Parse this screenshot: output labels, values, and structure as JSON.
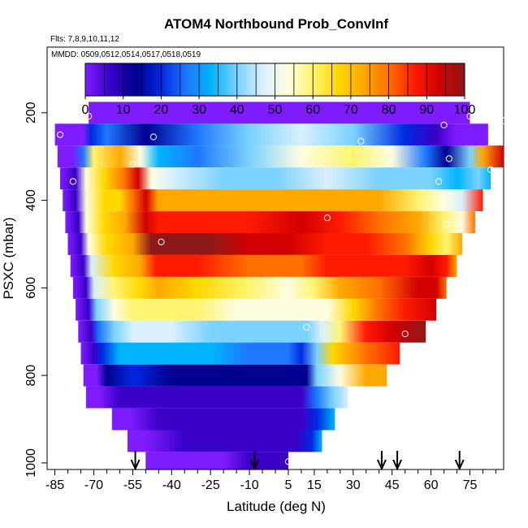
{
  "chart_data": {
    "type": "heatmap",
    "title": "ATOM4 Northbound Prob_ConvInf",
    "subtitle_flights": "Flts: 7,8,9,10,11,12",
    "subtitle_dates": "MMDD: 0509,0512,0514,0517,0518,0519",
    "xlabel": "Latitude (deg N)",
    "ylabel": "PSXC (mbar)",
    "xlim": [
      -88,
      88
    ],
    "ylim": [
      1015,
      50
    ],
    "y_reversed": true,
    "x_ticks": [
      -85,
      -70,
      -55,
      -40,
      -25,
      -10,
      5,
      15,
      30,
      45,
      60,
      75
    ],
    "x_minor_ticks": [
      -80,
      -75,
      -65,
      -60,
      -50,
      -45,
      -35,
      -30,
      -20,
      -15,
      -5,
      0,
      10,
      20,
      25,
      35,
      40,
      50,
      55,
      65,
      70,
      80,
      85
    ],
    "y_ticks": [
      200,
      400,
      600,
      800,
      1000
    ],
    "colorbar": {
      "range": [
        0,
        100
      ],
      "ticks": [
        0,
        10,
        20,
        30,
        40,
        50,
        60,
        70,
        80,
        90,
        100
      ],
      "colors": [
        "#7f1cff",
        "#3a00c8",
        "#000090",
        "#0028e0",
        "#1e78ff",
        "#00b4ff",
        "#7ad2ff",
        "#d8f0ff",
        "#fffde0",
        "#fff470",
        "#ffd800",
        "#ffa800",
        "#ff7000",
        "#ff1a00",
        "#d20000",
        "#8e1818"
      ]
    },
    "levels": [
      {
        "p": 200,
        "lat_min": -72,
        "lat_max": 75,
        "segments": [
          [
            -72,
            0
          ],
          [
            75,
            0
          ]
        ]
      },
      {
        "p": 250,
        "lat_min": -85,
        "lat_max": 82,
        "segments": [
          [
            -85,
            0
          ],
          [
            -74,
            4
          ],
          [
            -71,
            20
          ],
          [
            -65,
            28
          ],
          [
            -50,
            16
          ],
          [
            -30,
            28
          ],
          [
            -10,
            40
          ],
          [
            10,
            48
          ],
          [
            30,
            40
          ],
          [
            50,
            22
          ],
          [
            62,
            10
          ],
          [
            70,
            0
          ],
          [
            82,
            0
          ]
        ]
      },
      {
        "p": 300,
        "lat_min": -84,
        "lat_max": 88,
        "segments": [
          [
            -84,
            0
          ],
          [
            -78,
            6
          ],
          [
            -74,
            30
          ],
          [
            -70,
            60
          ],
          [
            -60,
            72
          ],
          [
            -52,
            50
          ],
          [
            -45,
            36
          ],
          [
            -30,
            28
          ],
          [
            -10,
            40
          ],
          [
            10,
            52
          ],
          [
            30,
            58
          ],
          [
            45,
            50
          ],
          [
            58,
            30
          ],
          [
            66,
            16
          ],
          [
            75,
            40
          ],
          [
            80,
            70
          ],
          [
            88,
            90
          ]
        ]
      },
      {
        "p": 350,
        "lat_min": -83,
        "lat_max": 83,
        "segments": [
          [
            -83,
            0
          ],
          [
            -77,
            8
          ],
          [
            -73,
            50
          ],
          [
            -66,
            64
          ],
          [
            -58,
            78
          ],
          [
            -53,
            88
          ],
          [
            -48,
            55
          ],
          [
            -40,
            46
          ],
          [
            -20,
            42
          ],
          [
            0,
            40
          ],
          [
            20,
            44
          ],
          [
            40,
            42
          ],
          [
            60,
            40
          ],
          [
            70,
            36
          ],
          [
            78,
            40
          ],
          [
            83,
            36
          ]
        ]
      },
      {
        "p": 400,
        "lat_min": -82,
        "lat_max": 80,
        "segments": [
          [
            -82,
            0
          ],
          [
            -77,
            8
          ],
          [
            -73,
            50
          ],
          [
            -66,
            64
          ],
          [
            -60,
            68
          ],
          [
            -55,
            78
          ],
          [
            -50,
            88
          ],
          [
            -45,
            72
          ],
          [
            -35,
            70
          ],
          [
            -15,
            74
          ],
          [
            5,
            74
          ],
          [
            20,
            72
          ],
          [
            40,
            74
          ],
          [
            55,
            62
          ],
          [
            65,
            50
          ],
          [
            72,
            44
          ],
          [
            80,
            85
          ]
        ]
      },
      {
        "p": 450,
        "lat_min": -81,
        "lat_max": 77,
        "segments": [
          [
            -81,
            0
          ],
          [
            -76,
            8
          ],
          [
            -73,
            50
          ],
          [
            -66,
            66
          ],
          [
            -58,
            72
          ],
          [
            -50,
            92
          ],
          [
            -45,
            86
          ],
          [
            -30,
            84
          ],
          [
            -10,
            84
          ],
          [
            10,
            88
          ],
          [
            25,
            86
          ],
          [
            40,
            80
          ],
          [
            55,
            72
          ],
          [
            65,
            60
          ],
          [
            72,
            50
          ],
          [
            77,
            78
          ]
        ]
      },
      {
        "p": 500,
        "lat_min": -80,
        "lat_max": 72,
        "segments": [
          [
            -80,
            0
          ],
          [
            -75,
            8
          ],
          [
            -72,
            50
          ],
          [
            -65,
            68
          ],
          [
            -55,
            74
          ],
          [
            -48,
            94
          ],
          [
            -42,
            98
          ],
          [
            -25,
            96
          ],
          [
            -10,
            92
          ],
          [
            5,
            88
          ],
          [
            20,
            86
          ],
          [
            35,
            82
          ],
          [
            50,
            76
          ],
          [
            60,
            66
          ],
          [
            66,
            62
          ],
          [
            72,
            74
          ]
        ]
      },
      {
        "p": 550,
        "lat_min": -79,
        "lat_max": 70,
        "segments": [
          [
            -79,
            0
          ],
          [
            -74,
            8
          ],
          [
            -71,
            48
          ],
          [
            -62,
            66
          ],
          [
            -52,
            74
          ],
          [
            -46,
            86
          ],
          [
            -30,
            82
          ],
          [
            -10,
            78
          ],
          [
            10,
            80
          ],
          [
            20,
            82
          ],
          [
            35,
            84
          ],
          [
            50,
            86
          ],
          [
            60,
            90
          ],
          [
            66,
            86
          ],
          [
            70,
            74
          ]
        ]
      },
      {
        "p": 600,
        "lat_min": -78,
        "lat_max": 66,
        "segments": [
          [
            -78,
            0
          ],
          [
            -73,
            8
          ],
          [
            -70,
            44
          ],
          [
            -62,
            58
          ],
          [
            -52,
            68
          ],
          [
            -45,
            70
          ],
          [
            -30,
            68
          ],
          [
            -10,
            60
          ],
          [
            5,
            56
          ],
          [
            15,
            60
          ],
          [
            25,
            70
          ],
          [
            40,
            80
          ],
          [
            55,
            88
          ],
          [
            62,
            90
          ],
          [
            66,
            80
          ]
        ]
      },
      {
        "p": 650,
        "lat_min": -77,
        "lat_max": 62,
        "segments": [
          [
            -77,
            0
          ],
          [
            -72,
            8
          ],
          [
            -69,
            40
          ],
          [
            -62,
            52
          ],
          [
            -55,
            60
          ],
          [
            -45,
            62
          ],
          [
            -30,
            58
          ],
          [
            -15,
            54
          ],
          [
            0,
            50
          ],
          [
            10,
            50
          ],
          [
            20,
            56
          ],
          [
            30,
            66
          ],
          [
            40,
            78
          ],
          [
            50,
            86
          ],
          [
            62,
            90
          ]
        ]
      },
      {
        "p": 700,
        "lat_min": -76,
        "lat_max": 58,
        "segments": [
          [
            -76,
            0
          ],
          [
            -71,
            8
          ],
          [
            -68,
            30
          ],
          [
            -62,
            40
          ],
          [
            -55,
            48
          ],
          [
            -40,
            46
          ],
          [
            -25,
            42
          ],
          [
            -10,
            40
          ],
          [
            5,
            42
          ],
          [
            12,
            40
          ],
          [
            18,
            48
          ],
          [
            25,
            62
          ],
          [
            35,
            86
          ],
          [
            45,
            92
          ],
          [
            58,
            94
          ]
        ]
      },
      {
        "p": 750,
        "lat_min": -75,
        "lat_max": 48,
        "segments": [
          [
            -75,
            0
          ],
          [
            -70,
            8
          ],
          [
            -67,
            24
          ],
          [
            -60,
            32
          ],
          [
            -45,
            34
          ],
          [
            -25,
            32
          ],
          [
            -10,
            30
          ],
          [
            5,
            28
          ],
          [
            10,
            22
          ],
          [
            16,
            40
          ],
          [
            22,
            64
          ],
          [
            35,
            80
          ],
          [
            48,
            84
          ]
        ]
      },
      {
        "p": 800,
        "lat_min": -74,
        "lat_max": 43,
        "segments": [
          [
            -74,
            0
          ],
          [
            -69,
            6
          ],
          [
            -65,
            18
          ],
          [
            -55,
            20
          ],
          [
            -40,
            18
          ],
          [
            -25,
            18
          ],
          [
            -10,
            16
          ],
          [
            5,
            16
          ],
          [
            12,
            14
          ],
          [
            16,
            40
          ],
          [
            25,
            56
          ],
          [
            35,
            70
          ],
          [
            43,
            72
          ]
        ]
      },
      {
        "p": 850,
        "lat_min": -73,
        "lat_max": 28,
        "segments": [
          [
            -73,
            0
          ],
          [
            -68,
            4
          ],
          [
            -60,
            10
          ],
          [
            -45,
            12
          ],
          [
            -30,
            12
          ],
          [
            -15,
            10
          ],
          [
            0,
            10
          ],
          [
            10,
            12
          ],
          [
            16,
            30
          ],
          [
            22,
            40
          ],
          [
            28,
            46
          ]
        ]
      },
      {
        "p": 900,
        "lat_min": -63,
        "lat_max": 23,
        "segments": [
          [
            -63,
            0
          ],
          [
            -56,
            4
          ],
          [
            -45,
            8
          ],
          [
            -30,
            10
          ],
          [
            -15,
            10
          ],
          [
            0,
            10
          ],
          [
            10,
            12
          ],
          [
            16,
            24
          ],
          [
            23,
            36
          ]
        ]
      },
      {
        "p": 950,
        "lat_min": -57,
        "lat_max": 18,
        "segments": [
          [
            -57,
            0
          ],
          [
            -50,
            6
          ],
          [
            -35,
            8
          ],
          [
            -20,
            8
          ],
          [
            -5,
            8
          ],
          [
            8,
            12
          ],
          [
            14,
            22
          ],
          [
            18,
            32
          ]
        ]
      },
      {
        "p": 1000,
        "lat_min": -50,
        "lat_max": 5,
        "segments": [
          [
            -50,
            0
          ],
          [
            -20,
            4
          ],
          [
            -10,
            8
          ],
          [
            5,
            8
          ]
        ]
      }
    ],
    "sample_points": [
      {
        "lat": -87,
        "p": 215
      },
      {
        "lat": -72,
        "p": 208
      },
      {
        "lat": 75,
        "p": 208
      },
      {
        "lat": 65,
        "p": 228
      },
      {
        "lat": 88,
        "p": 218
      },
      {
        "lat": -83,
        "p": 250
      },
      {
        "lat": -47,
        "p": 255
      },
      {
        "lat": 33,
        "p": 265
      },
      {
        "lat": 67,
        "p": 305
      },
      {
        "lat": -55,
        "p": 318
      },
      {
        "lat": 83,
        "p": 330
      },
      {
        "lat": -78,
        "p": 357
      },
      {
        "lat": 63,
        "p": 357
      },
      {
        "lat": 20,
        "p": 440
      },
      {
        "lat": 66,
        "p": 455
      },
      {
        "lat": -44,
        "p": 495
      },
      {
        "lat": 12,
        "p": 690
      },
      {
        "lat": 50,
        "p": 705
      },
      {
        "lat": 63,
        "p": 690
      },
      {
        "lat": -80,
        "p": 815
      },
      {
        "lat": -52,
        "p": 1000
      },
      {
        "lat": 5,
        "p": 997
      }
    ],
    "arrows_lat": [
      -54,
      -8,
      41,
      47,
      71
    ]
  }
}
